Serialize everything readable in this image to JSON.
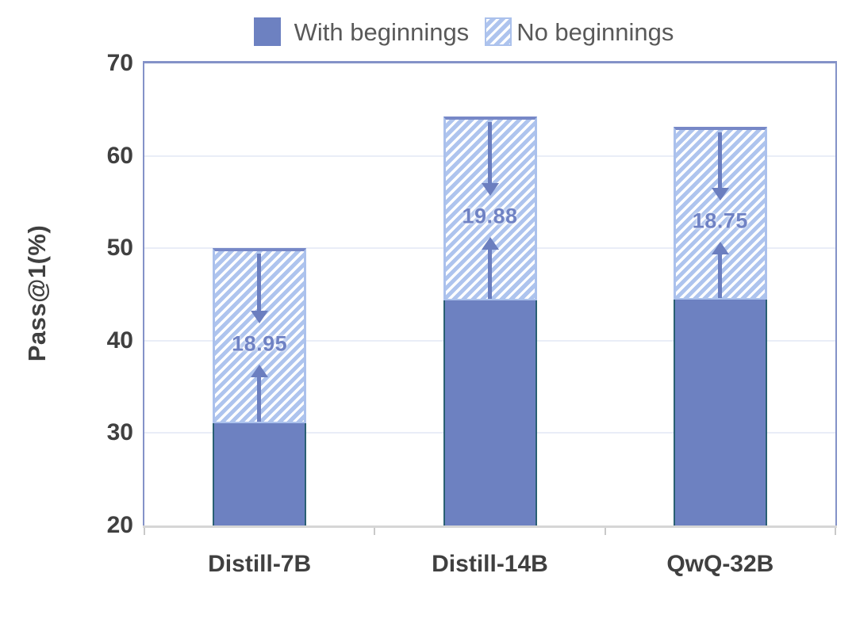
{
  "chart_data": {
    "type": "bar",
    "variant": "stacked-overlay-gap",
    "title": "",
    "ylabel": "Pass@1(%)",
    "xlabel": "",
    "ylim": [
      20,
      70
    ],
    "yticks": [
      20,
      30,
      40,
      50,
      60,
      70
    ],
    "categories": [
      "Distill-7B",
      "Distill-14B",
      "QwQ-32B"
    ],
    "series": [
      {
        "name": "With beginnings",
        "style": "solid",
        "values": [
          31.05,
          44.37,
          44.4
        ]
      },
      {
        "name": "No beginnings",
        "style": "hatched",
        "values": [
          50.0,
          64.25,
          63.15
        ]
      }
    ],
    "gap_labels": [
      "18.95",
      "19.88",
      "18.75"
    ],
    "grid": true,
    "legend_position": "top-center"
  },
  "legend": {
    "items": [
      {
        "label": "With beginnings",
        "swatch": "solid-square"
      },
      {
        "label": "No beginnings",
        "swatch": "hatched-square"
      }
    ]
  },
  "colors": {
    "background": "#FFFFFF",
    "solid_bar": "#6D81C1",
    "solid_bar_edge": "#2A6073",
    "hatch_blue": "#AEC4EE",
    "hatch_white": "#FFFFFF",
    "hatch_border": "#ABC1EC",
    "hatch_top_cap": "#7788C7",
    "arrow": "#6B7EBF",
    "gap_label_text": "#6F82C4",
    "axis_text": "#404040",
    "legend_text": "#595959",
    "gridline": "#E9EDF7",
    "plot_border": "#8492C8",
    "axis_line": "#D6D6D6",
    "tick_mark": "#C9C9C9"
  }
}
